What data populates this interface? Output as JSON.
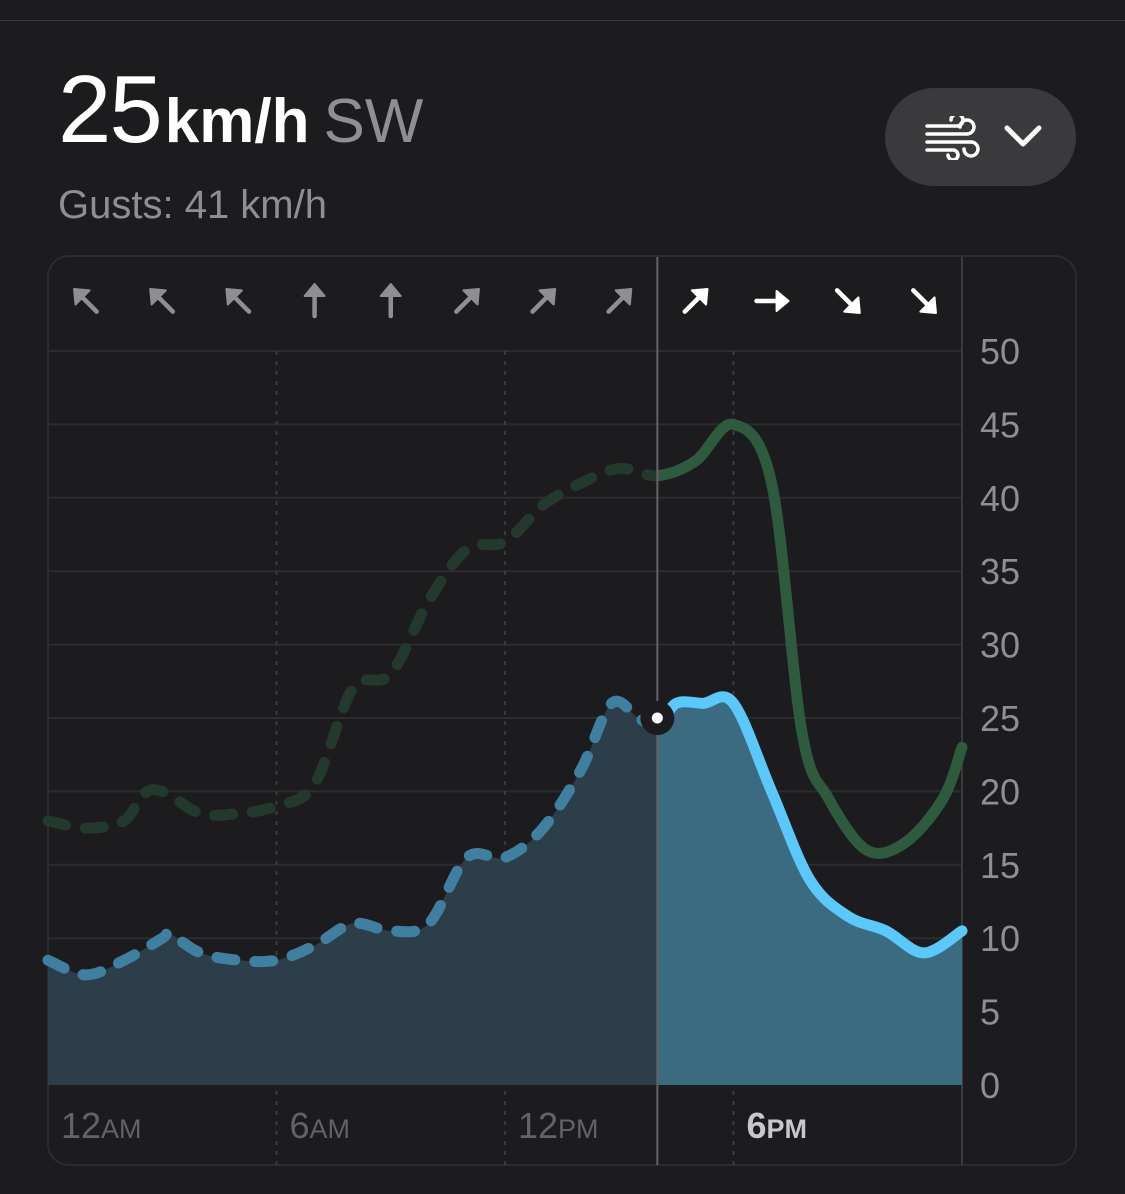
{
  "header": {
    "speed_value": "25",
    "speed_unit": "km/h",
    "direction": "SW",
    "gusts_text": "Gusts: 41 km/h"
  },
  "picker": {
    "icon": "wind-icon",
    "chevron": "chevron-down-icon"
  },
  "colors": {
    "background": "#1c1c1e",
    "wind_line": "#5ac8fa",
    "wind_fill": "#3b6b80",
    "gust_line": "#2e5a3e",
    "axis_text": "#8e8e93",
    "grid": "#2c2c2e"
  },
  "chart_data": {
    "type": "area",
    "x_ticks": [
      {
        "hour": 0,
        "major": "12",
        "minor": "AM"
      },
      {
        "hour": 6,
        "major": "6",
        "minor": "AM"
      },
      {
        "hour": 12,
        "major": "12",
        "minor": "PM"
      },
      {
        "hour": 18,
        "major": "6",
        "minor": "PM"
      }
    ],
    "y_ticks": [
      0,
      5,
      10,
      15,
      20,
      25,
      30,
      35,
      40,
      45,
      50
    ],
    "ylim": [
      0,
      50
    ],
    "xlim": [
      0,
      24
    ],
    "current_hour": 16,
    "current_value": 25,
    "direction_arrows": [
      {
        "hour": 1,
        "deg": 315
      },
      {
        "hour": 3,
        "deg": 315
      },
      {
        "hour": 5,
        "deg": 315
      },
      {
        "hour": 7,
        "deg": 0
      },
      {
        "hour": 9,
        "deg": 0
      },
      {
        "hour": 11,
        "deg": 45
      },
      {
        "hour": 13,
        "deg": 45
      },
      {
        "hour": 15,
        "deg": 45
      },
      {
        "hour": 17,
        "deg": 45
      },
      {
        "hour": 19,
        "deg": 90
      },
      {
        "hour": 21,
        "deg": 135
      },
      {
        "hour": 23,
        "deg": 135
      }
    ],
    "series": [
      {
        "key": "wind",
        "values": [
          [
            0,
            8.5
          ],
          [
            1,
            7.5
          ],
          [
            2,
            8.5
          ],
          [
            3,
            10
          ],
          [
            3.2,
            10.3
          ],
          [
            4,
            9
          ],
          [
            5,
            8.5
          ],
          [
            6,
            8.5
          ],
          [
            7,
            9.5
          ],
          [
            8,
            11
          ],
          [
            9,
            10.5
          ],
          [
            10,
            11
          ],
          [
            11,
            15.5
          ],
          [
            12,
            15.5
          ],
          [
            13,
            17.5
          ],
          [
            14,
            21.5
          ],
          [
            14.8,
            26
          ],
          [
            15.5,
            25
          ],
          [
            16,
            24.5
          ],
          [
            16.5,
            26
          ],
          [
            17.2,
            26
          ],
          [
            18,
            26
          ],
          [
            19,
            20
          ],
          [
            20,
            14
          ],
          [
            21,
            11.5
          ],
          [
            22,
            10.5
          ],
          [
            23,
            9
          ],
          [
            24,
            10.5
          ]
        ]
      },
      {
        "key": "gusts",
        "values": [
          [
            0,
            18
          ],
          [
            1,
            17.5
          ],
          [
            2,
            18
          ],
          [
            2.5,
            19.8
          ],
          [
            3,
            20
          ],
          [
            4,
            18.5
          ],
          [
            5,
            18.5
          ],
          [
            6,
            19
          ],
          [
            7,
            20.5
          ],
          [
            8,
            27
          ],
          [
            9,
            28
          ],
          [
            10,
            33
          ],
          [
            11,
            36.5
          ],
          [
            12,
            37
          ],
          [
            13,
            39.5
          ],
          [
            14,
            41
          ],
          [
            15,
            42
          ],
          [
            16,
            41.5
          ],
          [
            17,
            42.5
          ],
          [
            18,
            45
          ],
          [
            19,
            41
          ],
          [
            19.8,
            24
          ],
          [
            20.5,
            19.5
          ],
          [
            21.5,
            16
          ],
          [
            22.5,
            16.5
          ],
          [
            23.5,
            19.5
          ],
          [
            24,
            23
          ]
        ]
      }
    ]
  }
}
